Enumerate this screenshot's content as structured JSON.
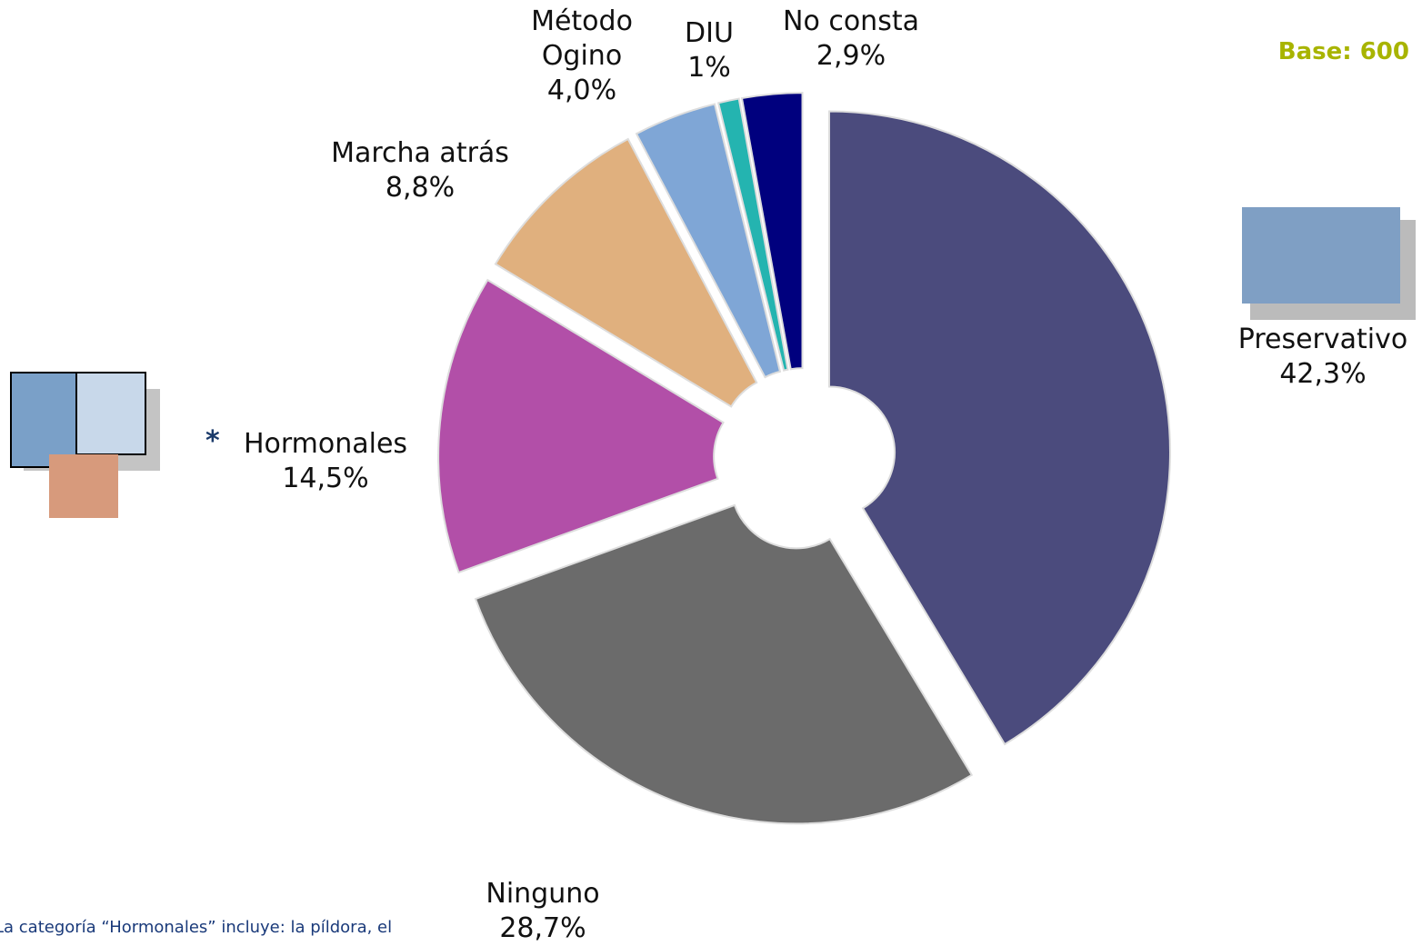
{
  "chart_data": {
    "type": "donut",
    "categories": [
      "Preservativo",
      "Ninguno",
      "Hormonales",
      "Marcha atrás",
      "Método Ogino",
      "DIU",
      "No consta"
    ],
    "values": [
      42.3,
      28.7,
      14.5,
      8.8,
      4.0,
      1,
      2.9
    ],
    "value_labels": [
      "42,3%",
      "28,7%",
      "14,5%",
      "8,8%",
      "4,0%",
      "1%",
      "2,9%"
    ],
    "colors": [
      "#4b4b7d",
      "#6b6b6b",
      "#b24fa8",
      "#e0b07e",
      "#7fa6d6",
      "#24b4b0",
      "#00007e"
    ],
    "base_label": "Base: 600",
    "note_marker": "*",
    "footnote": "La categoría “Hormonales” incluye: la píldora, el"
  }
}
